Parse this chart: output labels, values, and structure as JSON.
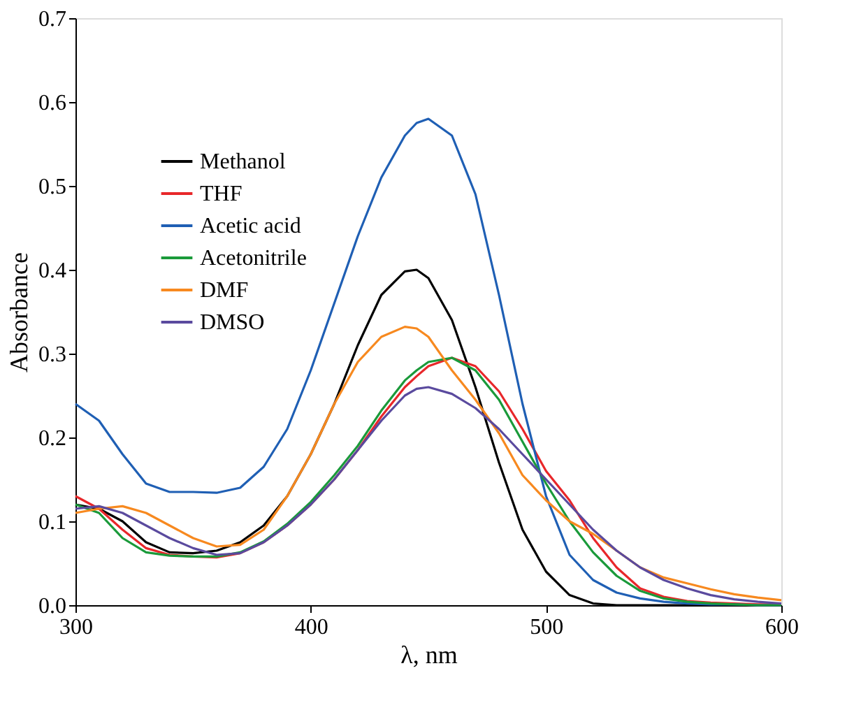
{
  "chart_data": {
    "type": "line",
    "xlabel": "λ, nm",
    "ylabel": "Absorbance",
    "x": [
      300,
      310,
      320,
      330,
      340,
      350,
      360,
      370,
      380,
      390,
      400,
      410,
      420,
      430,
      440,
      445,
      450,
      460,
      470,
      480,
      490,
      500,
      510,
      520,
      530,
      540,
      550,
      560,
      570,
      580,
      590,
      600
    ],
    "series": [
      {
        "name": "Methanol",
        "color": "#000000",
        "values": [
          0.12,
          0.115,
          0.1,
          0.075,
          0.063,
          0.062,
          0.065,
          0.075,
          0.095,
          0.13,
          0.18,
          0.24,
          0.31,
          0.37,
          0.398,
          0.4,
          0.39,
          0.34,
          0.26,
          0.17,
          0.09,
          0.04,
          0.012,
          0.002,
          0,
          0,
          0,
          0,
          0,
          0,
          0,
          0
        ]
      },
      {
        "name": "THF",
        "color": "#e8272a",
        "values": [
          0.13,
          0.115,
          0.09,
          0.068,
          0.06,
          0.058,
          0.057,
          0.062,
          0.075,
          0.095,
          0.12,
          0.15,
          0.185,
          0.225,
          0.26,
          0.273,
          0.285,
          0.295,
          0.285,
          0.255,
          0.21,
          0.16,
          0.125,
          0.08,
          0.045,
          0.02,
          0.01,
          0.005,
          0.003,
          0.002,
          0.001,
          0.001
        ]
      },
      {
        "name": "Acetic acid",
        "color": "#1f5fb4",
        "values": [
          0.24,
          0.22,
          0.18,
          0.145,
          0.135,
          0.135,
          0.134,
          0.14,
          0.165,
          0.21,
          0.28,
          0.36,
          0.44,
          0.51,
          0.56,
          0.575,
          0.58,
          0.56,
          0.49,
          0.37,
          0.24,
          0.13,
          0.06,
          0.03,
          0.015,
          0.008,
          0.004,
          0.002,
          0.001,
          0.001,
          0,
          0
        ]
      },
      {
        "name": "Acetonitrile",
        "color": "#1a9a3a",
        "values": [
          0.12,
          0.11,
          0.08,
          0.063,
          0.059,
          0.058,
          0.058,
          0.063,
          0.076,
          0.097,
          0.123,
          0.155,
          0.19,
          0.232,
          0.268,
          0.28,
          0.29,
          0.295,
          0.28,
          0.245,
          0.195,
          0.145,
          0.1,
          0.063,
          0.035,
          0.017,
          0.008,
          0.004,
          0.002,
          0.001,
          0,
          0
        ]
      },
      {
        "name": "DMF",
        "color": "#f7891f",
        "values": [
          0.11,
          0.115,
          0.118,
          0.11,
          0.095,
          0.08,
          0.07,
          0.072,
          0.09,
          0.13,
          0.18,
          0.24,
          0.29,
          0.32,
          0.332,
          0.33,
          0.32,
          0.28,
          0.245,
          0.205,
          0.155,
          0.125,
          0.1,
          0.085,
          0.065,
          0.045,
          0.033,
          0.026,
          0.019,
          0.013,
          0.009,
          0.006
        ]
      },
      {
        "name": "DMSO",
        "color": "#5a4a9e",
        "values": [
          0.115,
          0.118,
          0.11,
          0.095,
          0.08,
          0.068,
          0.06,
          0.062,
          0.075,
          0.095,
          0.12,
          0.15,
          0.185,
          0.22,
          0.25,
          0.258,
          0.26,
          0.252,
          0.235,
          0.21,
          0.18,
          0.15,
          0.12,
          0.09,
          0.065,
          0.045,
          0.03,
          0.02,
          0.012,
          0.007,
          0.004,
          0.002
        ]
      }
    ],
    "xlim": [
      300,
      600
    ],
    "xticks": [
      300,
      400,
      500,
      600
    ],
    "ylim": [
      0,
      0.7
    ],
    "yticks": [
      {
        "value": 0,
        "label": "0.0"
      },
      0.1,
      0.2,
      0.3,
      0.4,
      0.5,
      0.6,
      0.7
    ],
    "grid": false,
    "legend": "top left",
    "marker": "none",
    "line_style": "solid"
  }
}
